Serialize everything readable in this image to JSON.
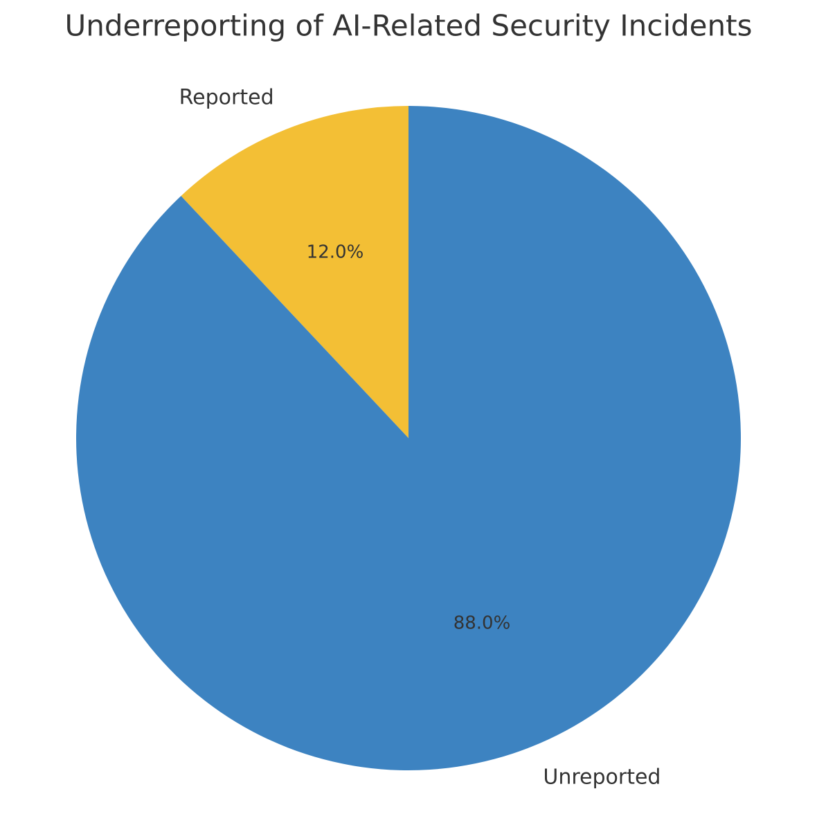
{
  "chart_data": {
    "type": "pie",
    "title": "Underreporting of AI-Related Security Incidents",
    "categories": [
      "Reported",
      "Unreported"
    ],
    "values": [
      12,
      88
    ],
    "value_labels": [
      "12.0%",
      "88.0%"
    ],
    "colors": [
      "#f3bf35",
      "#3d83c1"
    ]
  }
}
